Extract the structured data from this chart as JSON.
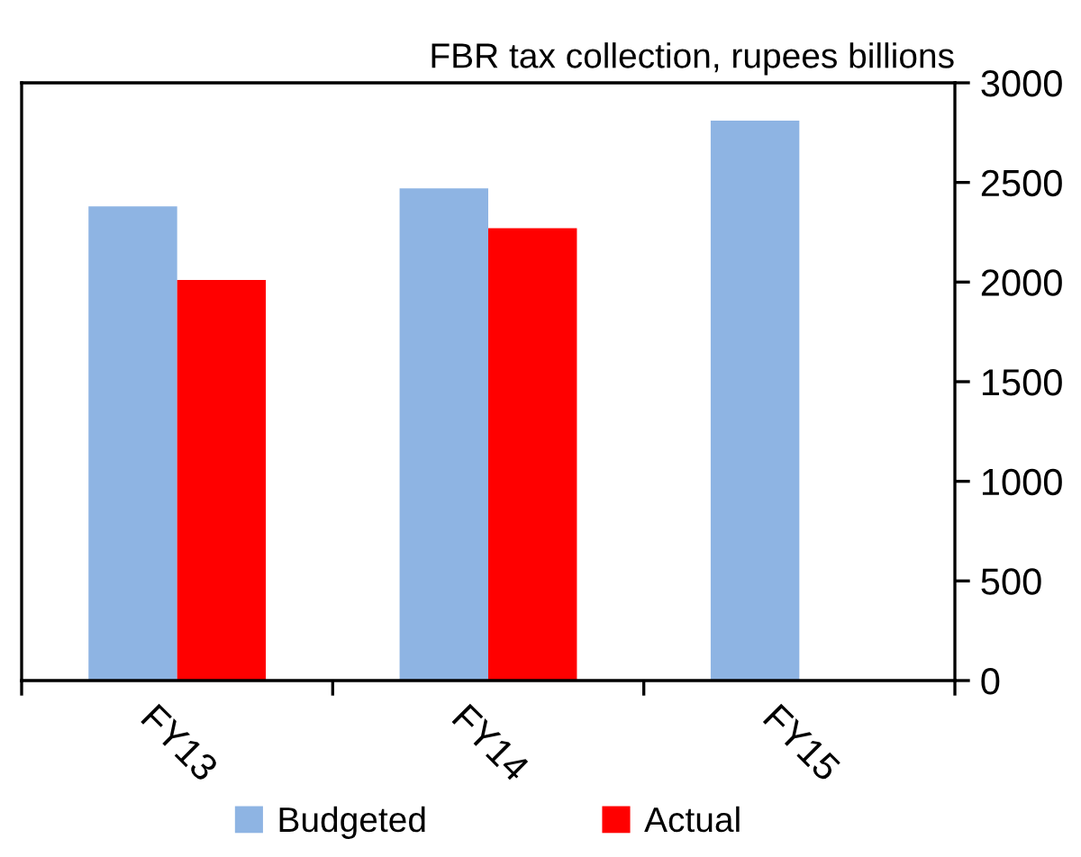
{
  "chart_data": {
    "type": "bar",
    "title": "FBR tax collection, rupees billions",
    "categories": [
      "FY13",
      "FY14",
      "FY15"
    ],
    "series": [
      {
        "name": "Budgeted",
        "color": "#8eb4e3",
        "values": [
          2380,
          2470,
          2810
        ]
      },
      {
        "name": "Actual",
        "color": "#ff0000",
        "values": [
          2010,
          2270,
          null
        ]
      }
    ],
    "ylim": [
      0,
      3000
    ],
    "yticks": [
      0,
      500,
      1000,
      1500,
      2000,
      2500,
      3000
    ],
    "grid": false,
    "legend": "bottom"
  }
}
